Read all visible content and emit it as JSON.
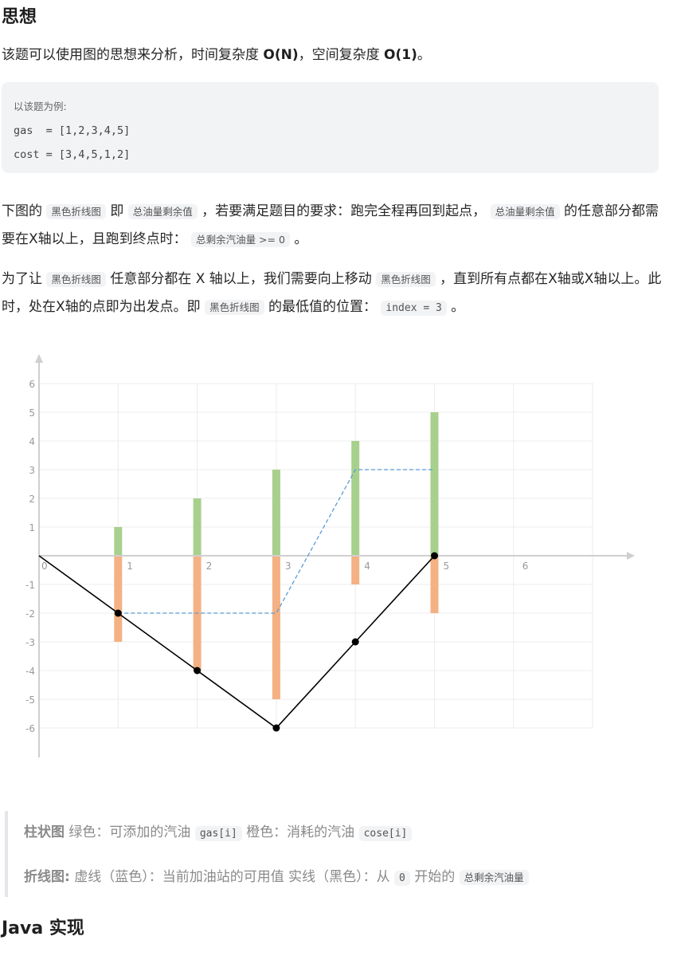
{
  "heading_idea": "思想",
  "intro": {
    "prefix": "该题可以使用图的思想来分析，时间复杂度 ",
    "time": "O(N)",
    "mid": "，空间复杂度 ",
    "space": "O(1)",
    "suffix": "。"
  },
  "code_lines": [
    "以该题为例:",
    "gas  = [1,2,3,4,5]",
    "cost = [3,4,5,1,2]"
  ],
  "para2": {
    "t1": "下图的 ",
    "c1": "黑色折线图",
    "t2": " 即 ",
    "c2": "总油量剩余值",
    "t3": " ，若要满足题目的要求：跑完全程再回到起点， ",
    "c3": "总油量剩余值",
    "t4": " 的任意部分都需要在X轴以上，且跑到终点时： ",
    "c4": "总剩余汽油量 >= 0",
    "t5": " 。"
  },
  "para3": {
    "t1": "为了让 ",
    "c1": "黑色折线图",
    "t2": " 任意部分都在 X 轴以上，我们需要向上移动 ",
    "c2": "黑色折线图",
    "t3": " ，直到所有点都在X轴或X轴以上。此时，处在X轴的点即为出发点。即 ",
    "c3": "黑色折线图",
    "t4": " 的最低值的位置： ",
    "c4": "index = 3",
    "t5": " 。"
  },
  "quote": {
    "l1_bold": "柱状图",
    "l1_a": " 绿色：可添加的汽油 ",
    "l1_c1": "gas[i]",
    "l1_b": " 橙色：消耗的汽油 ",
    "l1_c2": "cose[i]",
    "l2_bold": "折线图:",
    "l2_a": "  虚线（蓝色）：当前加油站的可用值 实线（黑色）：从 ",
    "l2_c1": "0",
    "l2_b": " 开始的 ",
    "l2_c2": "总剩余汽油量"
  },
  "heading_java": "Java 实现",
  "chart_data": {
    "type": "bar",
    "x_ticks": [
      "0",
      "1",
      "2",
      "3",
      "4",
      "5",
      "6"
    ],
    "y_ticks": [
      "6",
      "5",
      "4",
      "3",
      "2",
      "1",
      "-1",
      "-2",
      "-3",
      "-4",
      "-5",
      "-6"
    ],
    "ylim": [
      -6,
      6
    ],
    "xlim": [
      0,
      7
    ],
    "gas": {
      "x": [
        1,
        2,
        3,
        4,
        5
      ],
      "values": [
        1,
        2,
        3,
        4,
        5
      ],
      "color": "#a8d08d"
    },
    "cost": {
      "x": [
        1,
        2,
        3,
        4,
        5
      ],
      "values": [
        -3,
        -4,
        -5,
        -1,
        -2
      ],
      "color": "#f4b183"
    },
    "dashed_line": {
      "x": [
        1,
        2,
        3,
        4,
        5
      ],
      "y": [
        -2,
        -2,
        -2,
        3,
        3
      ],
      "color": "#5b9bd5"
    },
    "solid_line": {
      "x": [
        0,
        1,
        2,
        3,
        4,
        5
      ],
      "y": [
        0,
        -2,
        -4,
        -6,
        -3,
        0
      ],
      "color": "#000000"
    },
    "grid": true
  }
}
